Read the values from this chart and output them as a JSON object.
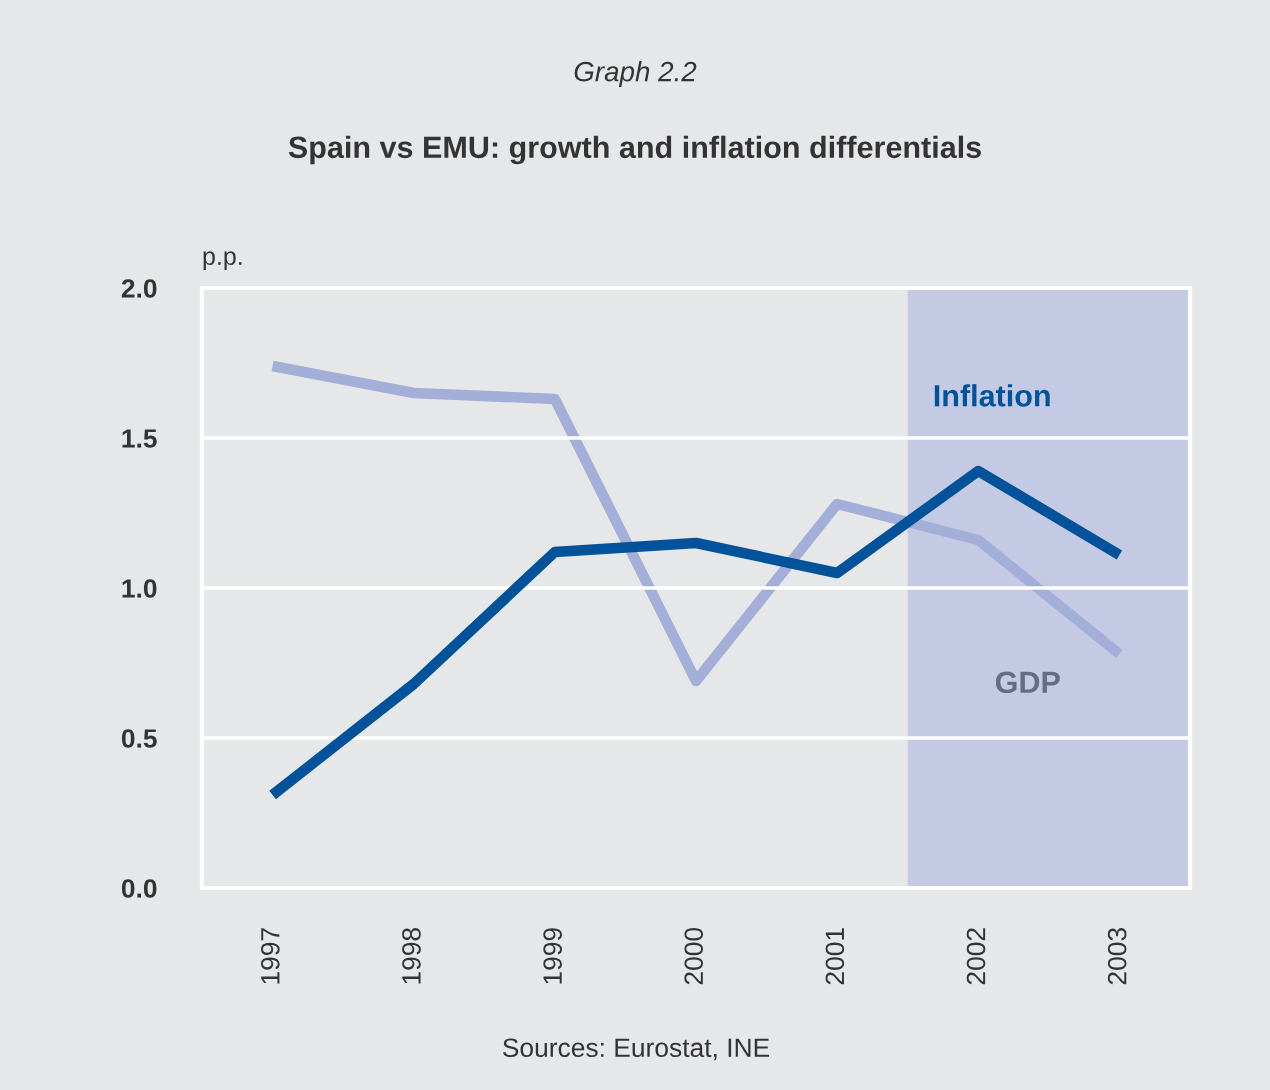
{
  "chart_data": {
    "type": "line",
    "title": "Spain vs EMU: growth and inflation differentials",
    "subtitle": "Graph 2.2",
    "ylabel": "p.p.",
    "annotations": [
      "Sources: Eurostat, INE"
    ],
    "x": [
      1997,
      1998,
      1999,
      2000,
      2001,
      2002,
      2003
    ],
    "xlim": [
      1996.5,
      2003.5
    ],
    "xticks": [
      1997,
      1998,
      1999,
      2000,
      2001,
      2002,
      2003
    ],
    "ylim": [
      0,
      2
    ],
    "yticks": [
      {
        "value": 0,
        "label": "0.0"
      },
      {
        "value": 0.5,
        "label": "0.5"
      },
      {
        "value": 1,
        "label": "1.0"
      },
      {
        "value": 1.5,
        "label": "1.5"
      },
      {
        "value": 2,
        "label": "2.0"
      }
    ],
    "series": [
      {
        "name": "GDP",
        "color": "#a3afd8",
        "values": [
          1.74,
          1.65,
          1.63,
          0.69,
          1.28,
          1.16,
          0.78
        ]
      },
      {
        "name": "Inflation",
        "color": "#00529b",
        "values": [
          0.31,
          0.68,
          1.12,
          1.15,
          1.05,
          1.39,
          1.11
        ]
      }
    ],
    "bands": [
      {
        "axis": "x",
        "from": 2001.5,
        "to": 2003.5,
        "color": "#c5cae4"
      }
    ],
    "grid": "y",
    "legend": false,
    "line_style": "solid",
    "marker": "none"
  }
}
